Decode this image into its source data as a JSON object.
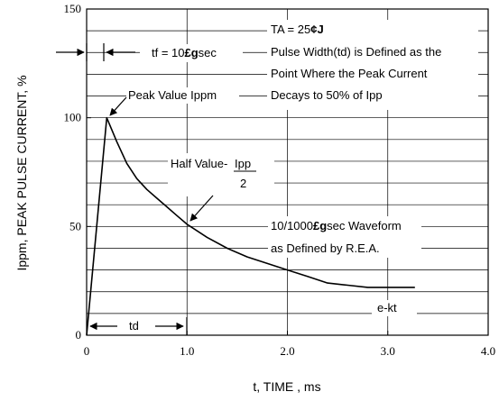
{
  "chart_data": {
    "type": "line",
    "xlabel": "t, TIME , ms",
    "ylabel": "Ippm, PEAK PULSE CURRENT, %",
    "xlim": [
      0,
      4.0
    ],
    "ylim": [
      0,
      150
    ],
    "grid": true,
    "x_ticks": [
      "0",
      "1.0",
      "2.0",
      "3.0",
      "4.0"
    ],
    "y_ticks": [
      "0",
      "50",
      "100",
      "150"
    ],
    "series": [
      {
        "x": [
          0,
          0.2,
          0.3,
          0.4,
          0.5,
          0.6,
          0.7,
          0.8,
          0.9,
          1.0,
          1.2,
          1.4,
          1.6,
          1.8,
          2.0,
          2.2,
          2.4,
          2.6,
          2.8,
          3.0,
          3.27
        ],
        "y": [
          0,
          100,
          89,
          79,
          72,
          67,
          63,
          59,
          55,
          51,
          45,
          40,
          36,
          33,
          30,
          27,
          24,
          23,
          22,
          22,
          22
        ]
      }
    ],
    "annotations": {
      "tf_label": "tf = 10",
      "tf_unit_glyph": "£g",
      "tf_unit": "sec",
      "ta_label": "TA = 25",
      "ta_glyph": "¢J",
      "pulse_width_line1": "Pulse Width(td) is Defined as the",
      "pulse_width_line2": "Point Where the Peak Current",
      "pulse_width_line3": "Decays to 50% of Ipp",
      "peak_value": "Peak Value Ippm",
      "half_value": "Half Value-",
      "half_value_ipp": "Ipp",
      "half_value_den": "2",
      "waveform_line1_pre": "10/1000",
      "waveform_glyph": "£g",
      "waveform_line1_post": "sec Waveform",
      "waveform_line2": "as Defined by R.E.A.",
      "ekt": "e-kt",
      "td": "td"
    }
  }
}
